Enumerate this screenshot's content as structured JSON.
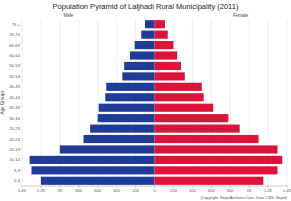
{
  "chart_data": {
    "type": "pyramid",
    "title": "Population Pyramid of Laljhadi Rural Municipality (2011)",
    "ylabel": "Age Groups",
    "orientation": "horizontal",
    "categories": [
      "0-4",
      "5-9",
      "10-14",
      "15-19",
      "20-24",
      "25-29",
      "30-34",
      "35-39",
      "40-44",
      "45-49",
      "50-54",
      "55-59",
      "60-64",
      "65-69",
      "70-74",
      "75 +"
    ],
    "series": [
      {
        "name": "Male",
        "color": "#1f3c98",
        "values": [
          1200,
          1300,
          1320,
          1000,
          750,
          680,
          600,
          590,
          520,
          510,
          340,
          320,
          260,
          210,
          140,
          100
        ]
      },
      {
        "name": "Female",
        "color": "#dc143c",
        "values": [
          1150,
          1300,
          1350,
          1300,
          1100,
          900,
          780,
          620,
          520,
          500,
          320,
          280,
          240,
          200,
          140,
          110
        ]
      }
    ],
    "xlim": [
      0,
      1400
    ],
    "xticks": [
      0,
      200,
      400,
      600,
      800,
      {
        "value": 1000,
        "label": "1K"
      },
      {
        "value": 1200,
        "label": "1.2K"
      },
      {
        "value": 1400,
        "label": "1.4K"
      }
    ],
    "grid": true,
    "annotations": [
      "(Copyright: NepalArchives.Com. Data: CBS, Nepal)"
    ]
  }
}
